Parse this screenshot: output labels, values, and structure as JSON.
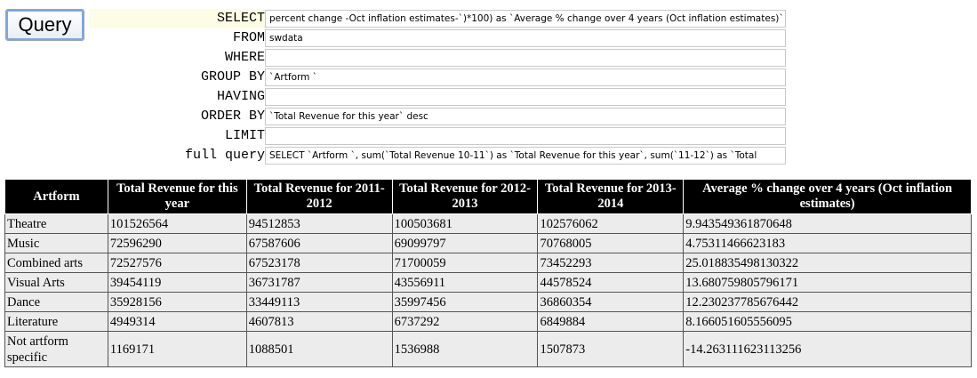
{
  "query_button": {
    "label": "Query"
  },
  "query_form": {
    "rows": [
      {
        "label": "SELECT",
        "value": "percent change -Oct inflation estimates-`)*100) as `Average % change over 4 years (Oct inflation estimates)`"
      },
      {
        "label": "FROM",
        "value": "swdata"
      },
      {
        "label": "WHERE",
        "value": ""
      },
      {
        "label": "GROUP BY",
        "value": "`Artform `"
      },
      {
        "label": "HAVING",
        "value": ""
      },
      {
        "label": "ORDER BY",
        "value": "`Total Revenue for this year` desc"
      },
      {
        "label": "LIMIT",
        "value": ""
      },
      {
        "label": "full query",
        "value": "SELECT `Artform `, sum(`Total Revenue 10-11`) as `Total Revenue for this year`, sum(`11-12`) as `Total"
      }
    ]
  },
  "results_table": {
    "headers": [
      "Artform",
      "Total Revenue for this year",
      "Total Revenue for 2011-2012",
      "Total Revenue for 2012-2013",
      "Total Revenue for 2013-2014",
      "Average % change over 4 years (Oct inflation estimates)"
    ],
    "rows": [
      [
        "Theatre",
        "101526564",
        "94512853",
        "100503681",
        "102576062",
        "9.943549361870648"
      ],
      [
        "Music",
        "72596290",
        "67587606",
        "69099797",
        "70768005",
        "4.75311466623183"
      ],
      [
        "Combined arts",
        "72527576",
        "67523178",
        "71700059",
        "73452293",
        "25.018835498130322"
      ],
      [
        "Visual Arts",
        "39454119",
        "36731787",
        "43556911",
        "44578524",
        "13.680759805796171"
      ],
      [
        "Dance",
        "35928156",
        "33449113",
        "35997456",
        "36860354",
        "12.230237785676442"
      ],
      [
        "Literature",
        "4949314",
        "4607813",
        "6737292",
        "6849884",
        "8.166051605556095"
      ],
      [
        "Not artform specific",
        "1169171",
        "1088501",
        "1536988",
        "1507873",
        "-14.263111623113256"
      ]
    ]
  }
}
